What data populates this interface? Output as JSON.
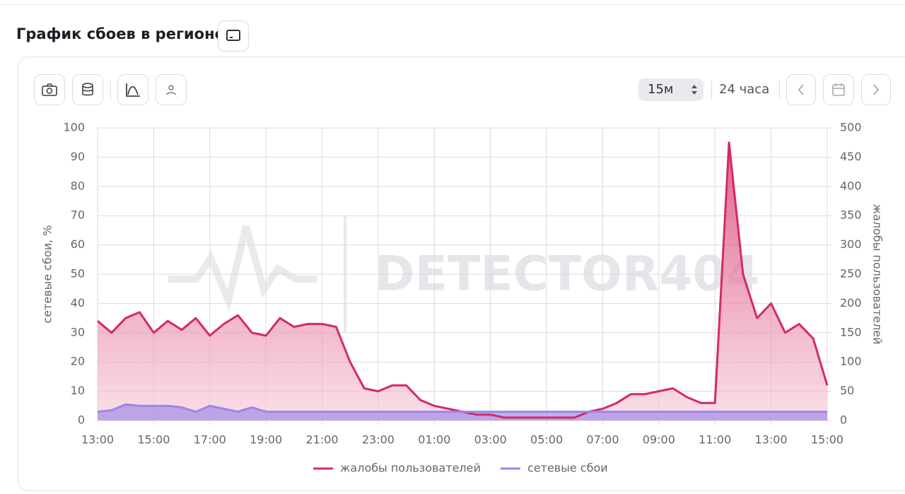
{
  "header": {
    "title": "График сбоев в регионе"
  },
  "toolbar": {
    "interval": "15м",
    "period": "24 часа"
  },
  "watermark": "DETECTOR404",
  "chart_data": {
    "type": "line",
    "y_label": "сетевые сбои, %",
    "y2_label": "жалобы пользователей",
    "categories": [
      "13:00",
      null,
      null,
      null,
      "15:00",
      null,
      null,
      null,
      "17:00",
      null,
      null,
      null,
      "19:00",
      null,
      null,
      null,
      "21:00",
      null,
      null,
      null,
      "23:00",
      null,
      null,
      null,
      "01:00",
      null,
      null,
      null,
      "03:00",
      null,
      null,
      null,
      "05:00",
      null,
      null,
      null,
      "07:00",
      null,
      null,
      null,
      "09:00",
      null,
      null,
      null,
      "11:00",
      null,
      null,
      null,
      "13:00",
      null,
      null,
      null,
      "15:00"
    ],
    "series": [
      {
        "name": "жалобы пользователей",
        "color": "#d42a66",
        "axis": "y2",
        "values": [
          170,
          150,
          175,
          185,
          150,
          170,
          155,
          175,
          145,
          165,
          180,
          150,
          145,
          175,
          160,
          165,
          165,
          160,
          100,
          55,
          50,
          60,
          60,
          35,
          25,
          20,
          15,
          10,
          10,
          5,
          5,
          5,
          5,
          5,
          5,
          15,
          20,
          30,
          45,
          45,
          50,
          55,
          40,
          30,
          30,
          475,
          250,
          175,
          200,
          150,
          165,
          140,
          60
        ]
      },
      {
        "name": "сетевые сбои",
        "color": "#9d86e6",
        "values": [
          3,
          3.5,
          5.5,
          5,
          5,
          5,
          4.5,
          3,
          5,
          4,
          3,
          4.5,
          3,
          3,
          3,
          3,
          3,
          3,
          3,
          3,
          3,
          3,
          3,
          3,
          3,
          3,
          3,
          3,
          3,
          3,
          3,
          3,
          3,
          3,
          3,
          3,
          3,
          3,
          3,
          3,
          3,
          3,
          3,
          3,
          3,
          3,
          3,
          3,
          3,
          3,
          3,
          3,
          3
        ]
      }
    ],
    "ylim": [
      0,
      100
    ],
    "yticks": [
      0,
      10,
      20,
      30,
      40,
      50,
      60,
      70,
      80,
      90,
      100
    ],
    "y2lim": [
      0,
      500
    ],
    "y2ticks": [
      0,
      50,
      100,
      150,
      200,
      250,
      300,
      350,
      400,
      450,
      500
    ],
    "grid": true
  }
}
